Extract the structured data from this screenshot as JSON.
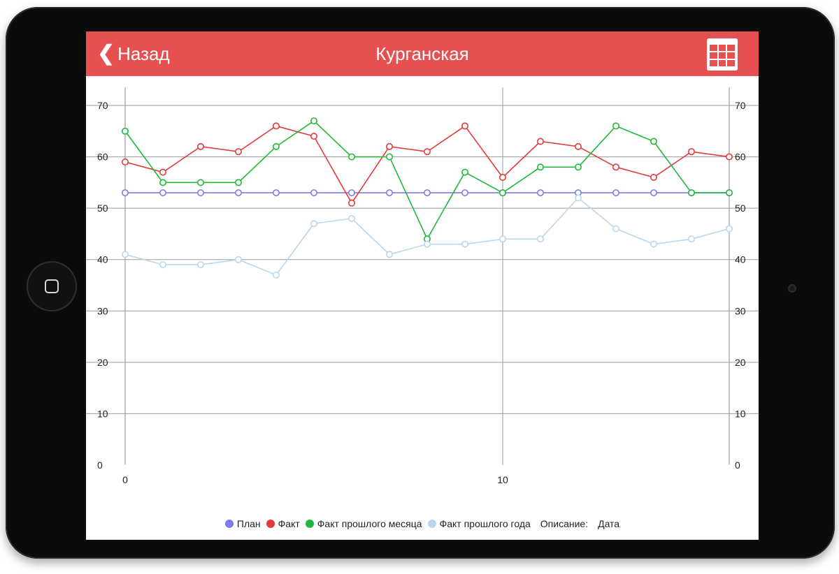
{
  "header": {
    "back_label": "Назад",
    "title": "Курганская",
    "back_icon": "chevron-left-icon",
    "menu_icon": "grid-icon",
    "color": "#e65050"
  },
  "legend": {
    "description_label": "Описание:",
    "description_value": "Дата"
  },
  "chart_data": {
    "type": "line",
    "x": [
      0,
      1,
      2,
      3,
      4,
      5,
      6,
      7,
      8,
      9,
      10,
      11,
      12,
      13,
      14,
      15,
      16
    ],
    "ylim": [
      0,
      70
    ],
    "xlim": [
      0,
      16
    ],
    "y_ticks": [
      0,
      10,
      20,
      30,
      40,
      50,
      60,
      70
    ],
    "x_ticks": [
      0,
      10
    ],
    "grid": true,
    "legend_position": "bottom",
    "series": [
      {
        "name": "План",
        "color": "#7b7bea",
        "values": [
          53,
          53,
          53,
          53,
          53,
          53,
          53,
          53,
          53,
          53,
          53,
          53,
          53,
          53,
          53,
          53,
          53
        ]
      },
      {
        "name": "Факт",
        "color": "#e23a3a",
        "values": [
          59,
          57,
          62,
          61,
          66,
          64,
          51,
          62,
          61,
          66,
          56,
          63,
          62,
          58,
          56,
          61,
          60
        ]
      },
      {
        "name": "Факт прошлого месяца",
        "color": "#1fb83a",
        "values": [
          65,
          55,
          55,
          55,
          62,
          67,
          60,
          60,
          44,
          57,
          53,
          58,
          58,
          66,
          63,
          53,
          53
        ]
      },
      {
        "name": "Факт прошлого года",
        "color": "#b9d6ec",
        "values": [
          41,
          39,
          39,
          40,
          37,
          47,
          48,
          41,
          43,
          43,
          44,
          44,
          52,
          46,
          43,
          44,
          46
        ]
      }
    ]
  }
}
